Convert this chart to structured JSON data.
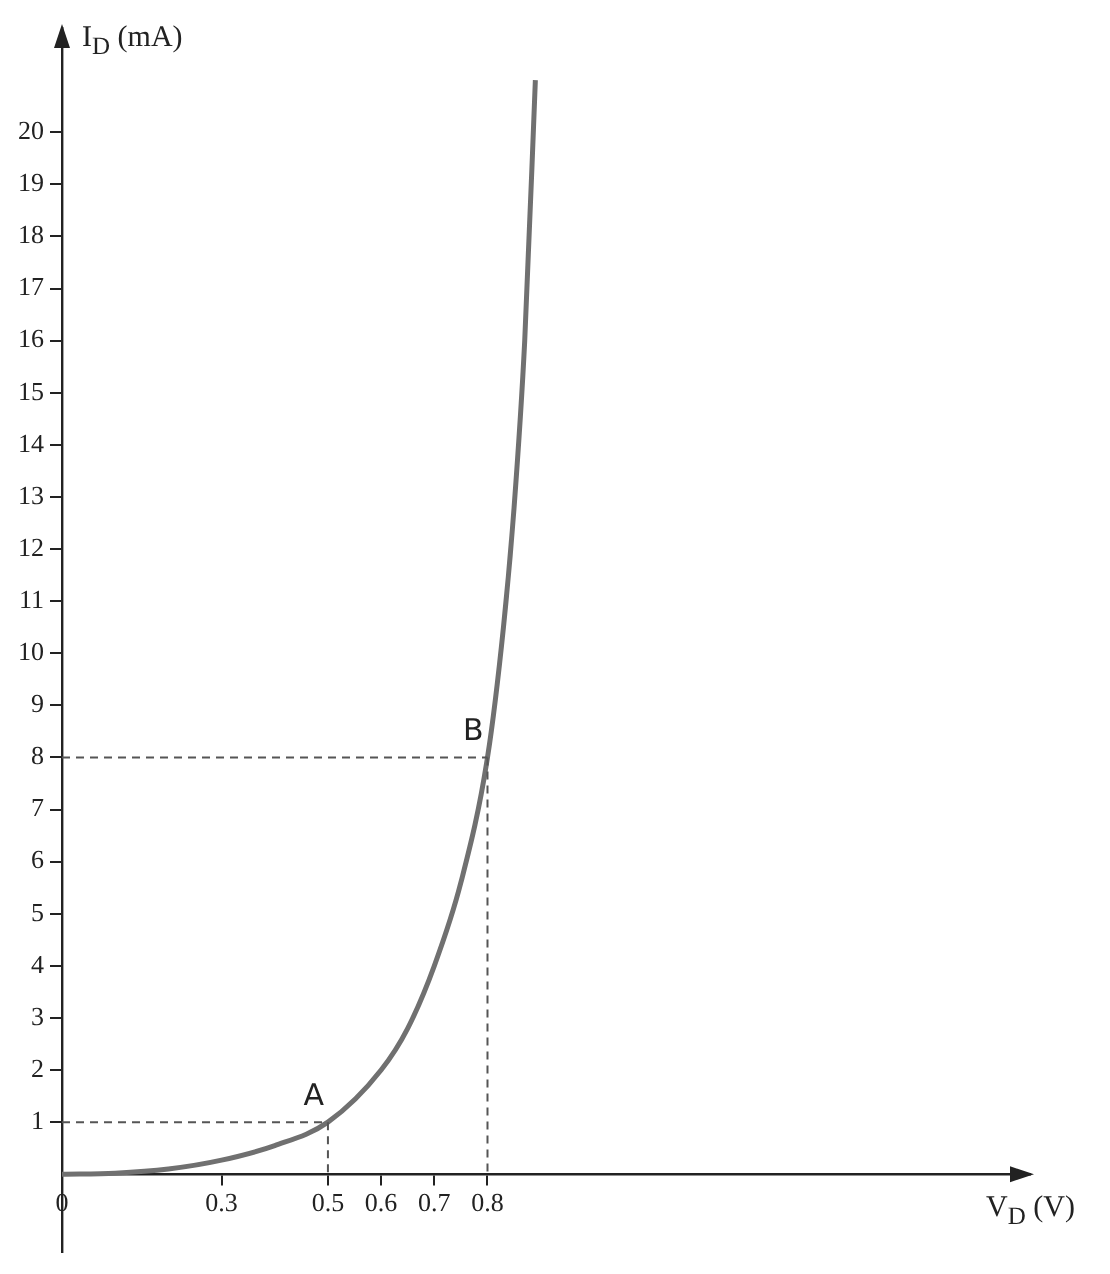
{
  "chart_data": {
    "type": "line",
    "xlabel": "V$_{D}$ (V)",
    "ylabel": "I$_{D}$ (mA)",
    "xlim": [
      0,
      1.82
    ],
    "ylim": [
      -1.5,
      22
    ],
    "xticks": [
      0,
      0.3,
      0.5,
      0.6,
      0.7,
      0.8
    ],
    "yticks": [
      1,
      2,
      3,
      4,
      5,
      6,
      7,
      8,
      9,
      10,
      11,
      12,
      13,
      14,
      15,
      16,
      17,
      18,
      19,
      20
    ],
    "series": [
      {
        "color": "#707070",
        "x": [
          0,
          0.1,
          0.2,
          0.3,
          0.4,
          0.5,
          0.6,
          0.65,
          0.7,
          0.75,
          0.8,
          0.83,
          0.85,
          0.87,
          0.89
        ],
        "values": [
          0,
          0.02,
          0.1,
          0.27,
          0.55,
          1,
          2,
          2.8,
          4,
          5.6,
          8,
          10.5,
          12.8,
          16,
          21
        ]
      }
    ],
    "annotations": [
      {
        "text": "A",
        "x": 0.5,
        "y": 1
      },
      {
        "text": "B",
        "x": 0.8,
        "y": 8
      }
    ],
    "grid": false,
    "legend": false,
    "marker": "none",
    "line_style": "solid"
  }
}
